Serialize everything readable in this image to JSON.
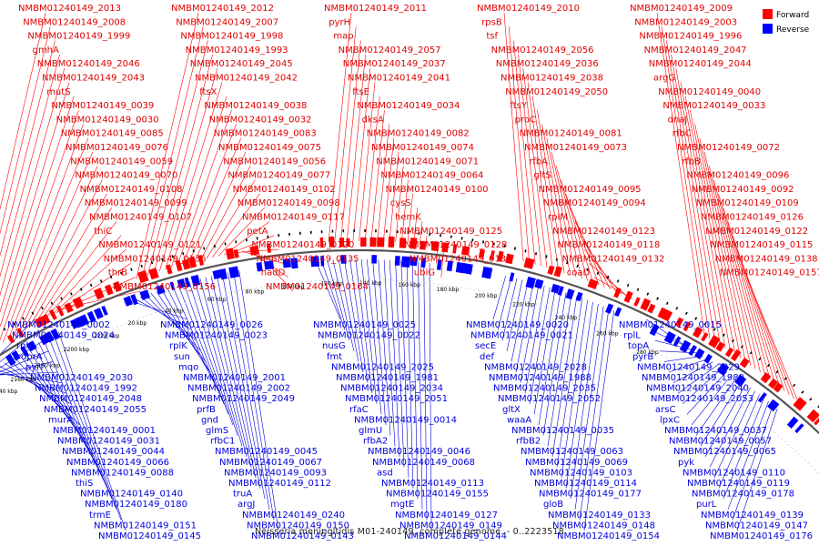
{
  "caption": "Neisseria meningitidis M01-240149, complete genome. - 0..2223518",
  "legend": {
    "forward": {
      "label": "Forward",
      "color": "#ff0000"
    },
    "reverse": {
      "label": "Reverse",
      "color": "#0000ff"
    }
  },
  "colors": {
    "backbone": "#555555",
    "forward_feature": "#ff0000",
    "reverse_feature": "#0000ff",
    "tick_mark": "#000000"
  },
  "ticks": [
    "2140 kbp",
    "2160 kbp",
    "2180 kbp",
    "2200 kbp",
    "2220 kbp",
    "20 kbp",
    "40 kbp",
    "60 kbp",
    "80 kbp",
    "100 kbp",
    "120 kbp",
    "140 kbp",
    "160 kbp",
    "180 kbp",
    "200 kbp",
    "220 kbp",
    "240 kbp",
    "260 kbp",
    "280 kbp"
  ],
  "forward_labels": [
    "NMBM01240149_2013",
    "NMBM01240149_2012",
    "NMBM01240149_2011",
    "NMBM01240149_2010",
    "NMBM01240149_2009",
    "NMBM01240149_2008",
    "NMBM01240149_2007",
    "pyrH",
    "rpsB",
    "NMBM01240149_2003",
    "NMBM01240149_1999",
    "NMBM01240149_1998",
    "map",
    "tsf",
    "NMBM01240149_1996",
    "gmhA",
    "NMBM01240149_1993",
    "NMBM01240149_2057",
    "NMBM01240149_2056",
    "NMBM01240149_2047",
    "NMBM01240149_2046",
    "NMBM01240149_2045",
    "NMBM01240149_2037",
    "NMBM01240149_2036",
    "NMBM01240149_2044",
    "NMBM01240149_2043",
    "NMBM01240149_2042",
    "NMBM01240149_2041",
    "NMBM01240149_2038",
    "argG",
    "mutS",
    "ftsX",
    "ftsE",
    "NMBM01240149_2050",
    "NMBM01240149_0040",
    "NMBM01240149_0039",
    "NMBM01240149_0038",
    "NMBM01240149_0034",
    "ftsY",
    "NMBM01240149_0033",
    "NMBM01240149_0030",
    "NMBM01240149_0032",
    "dksA",
    "proC",
    "dnaJ",
    "NMBM01240149_0085",
    "NMBM01240149_0083",
    "NMBM01240149_0082",
    "NMBM01240149_0081",
    "rfbC",
    "NMBM01240149_0076",
    "NMBM01240149_0075",
    "NMBM01240149_0074",
    "NMBM01240149_0073",
    "NMBM01240149_0072",
    "NMBM01240149_0059",
    "NMBM01240149_0056",
    "NMBM01240149_0071",
    "rfbA",
    "rfbB",
    "NMBM01240149_0070",
    "NMBM01240149_0077",
    "NMBM01240149_0064",
    "gltS",
    "NMBM01240149_0096",
    "NMBM01240149_0108",
    "NMBM01240149_0102",
    "NMBM01240149_0100",
    "NMBM01240149_0095",
    "NMBM01240149_0092",
    "NMBM01240149_0099",
    "NMBM01240149_0098",
    "cysS",
    "NMBM01240149_0094",
    "NMBM01240149_0109",
    "NMBM01240149_0107",
    "NMBM01240149_0117",
    "hemK",
    "rplM",
    "NMBM01240149_0126",
    "thiC",
    "petA",
    "NMBM01240149_0125",
    "NMBM01240149_0123",
    "NMBM01240149_0122",
    "NMBM01240149_0121",
    "NMBM01240149_0120",
    "NMBM01240149_0128",
    "NMBM01240149_0118",
    "NMBM01240149_0115",
    "NMBM01240149_0136",
    "NMBM01240149_0135",
    "NMBM01240149_0134",
    "NMBM01240149_0132",
    "NMBM01240149_0138",
    "thrB",
    "nadD",
    "ubiG",
    "coaD",
    "NMBM01240149_0157",
    "NMBM01240149_0156",
    "NMBM01240149_0164"
  ],
  "reverse_labels": [
    "NMBM01240149_0002",
    "NMBM01240149_0026",
    "NMBM01240149_0025",
    "NMBM01240149_0020",
    "NMBM01240149_0015",
    "NMBM01240149_0024",
    "NMBM01240149_0023",
    "NMBM01240149_0022",
    "NMBM01240149_0021",
    "rplL",
    "rplA",
    "rplK",
    "nusG",
    "secE",
    "topA",
    "dprA",
    "sun",
    "fmt",
    "def",
    "pyrB",
    "pyrI",
    "mqo",
    "NMBM01240149_2025",
    "NMBM01240149_2028",
    "NMBM01240149_2029",
    "NMBM01240149_2030",
    "NMBM01240149_2001",
    "NMBM01240149_1981",
    "NMBM01240149_1988",
    "NMBM01240149_1989",
    "NMBM01240149_1992",
    "NMBM01240149_2002",
    "NMBM01240149_2034",
    "NMBM01240149_2035",
    "NMBM01240149_2040",
    "NMBM01240149_2048",
    "NMBM01240149_2049",
    "NMBM01240149_2051",
    "NMBM01240149_2052",
    "NMBM01240149_2053",
    "NMBM01240149_2055",
    "prfB",
    "rfaC",
    "gltX",
    "arsC",
    "murA",
    "gnd",
    "NMBM01240149_0014",
    "waaA",
    "lpxC",
    "NMBM01240149_0001",
    "glmS",
    "glmU",
    "NMBM01240149_0035",
    "NMBM01240149_0037",
    "NMBM01240149_0031",
    "rfbC1",
    "rfbA2",
    "rfbB2",
    "NMBM01240149_0057",
    "NMBM01240149_0044",
    "NMBM01240149_0045",
    "NMBM01240149_0046",
    "NMBM01240149_0063",
    "NMBM01240149_0065",
    "NMBM01240149_0066",
    "NMBM01240149_0067",
    "NMBM01240149_0068",
    "NMBM01240149_0069",
    "pyk",
    "NMBM01240149_0088",
    "NMBM01240149_0093",
    "asd",
    "NMBM01240149_0103",
    "NMBM01240149_0110",
    "thiS",
    "NMBM01240149_0112",
    "NMBM01240149_0113",
    "NMBM01240149_0114",
    "NMBM01240149_0119",
    "NMBM01240149_0140",
    "truA",
    "NMBM01240149_0155",
    "NMBM01240149_0177",
    "NMBM01240149_0178",
    "NMBM01240149_0180",
    "argJ",
    "mgtE",
    "gloB",
    "purL",
    "trmE",
    "NMBM01240149_0240",
    "NMBM01240149_0127",
    "NMBM01240149_0133",
    "NMBM01240149_0139",
    "NMBM01240149_0151",
    "NMBM01240149_0150",
    "NMBM01240149_0149",
    "NMBM01240149_0148",
    "NMBM01240149_0147",
    "NMBM01240149_0145",
    "NMBM01240149_0143",
    "NMBM01240149_0144",
    "NMBM01240149_0154",
    "NMBM01240149_0176"
  ]
}
